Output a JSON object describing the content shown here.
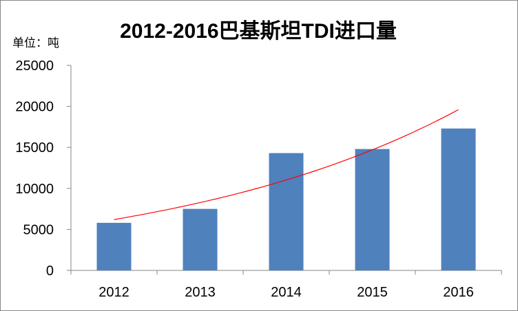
{
  "chart_data": {
    "type": "bar",
    "title": "2012-2016巴基斯坦TDI进口量",
    "unit_label": "单位：吨",
    "categories": [
      "2012",
      "2013",
      "2014",
      "2015",
      "2016"
    ],
    "values": [
      5800,
      7500,
      14300,
      14800,
      17300
    ],
    "ylim": [
      0,
      25000
    ],
    "yticks": [
      "0",
      "5000",
      "10000",
      "15000",
      "20000",
      "25000"
    ],
    "grid": false,
    "legend": "none",
    "bar_color": "#4F81BD",
    "trendline": {
      "type": "exponential",
      "color": "#FF0000",
      "start_value": 6200,
      "end_value": 19600
    }
  }
}
